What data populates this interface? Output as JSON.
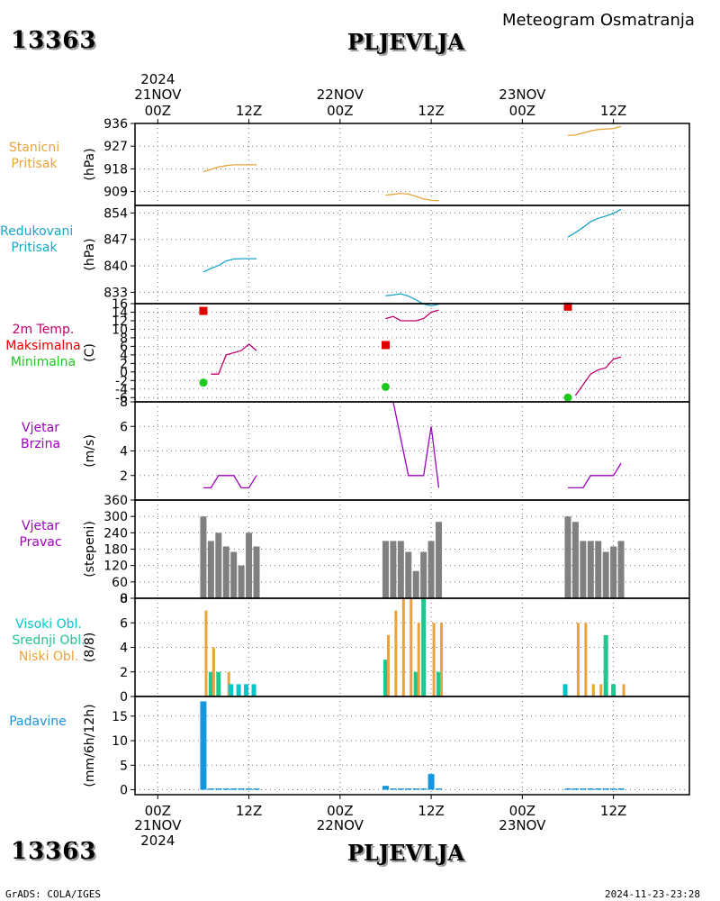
{
  "header": {
    "station_id": "13363",
    "station_name": "PLJEVLJA",
    "title": "Meteogram Osmatranja"
  },
  "footer": {
    "source": "GrADS: COLA/IGES",
    "timestamp": "2024-11-23-23:28"
  },
  "time_axis": {
    "year": "2024",
    "major_ticks": [
      {
        "hour": 0,
        "label": "00Z",
        "date": "21NOV"
      },
      {
        "hour": 12,
        "label": "12Z",
        "date": ""
      },
      {
        "hour": 24,
        "label": "00Z",
        "date": "22NOV"
      },
      {
        "hour": 36,
        "label": "12Z",
        "date": ""
      },
      {
        "hour": 48,
        "label": "00Z",
        "date": "23NOV"
      },
      {
        "hour": 60,
        "label": "12Z",
        "date": ""
      }
    ],
    "range_hours": [
      -3,
      70
    ]
  },
  "colors": {
    "pressure_station": "#e8a33a",
    "pressure_reduced": "#1aa5c8",
    "temperature": "#c0006a",
    "tmax": "#e00000",
    "tmin": "#1ec81e",
    "wind_speed": "#a000c0",
    "wind_dir": "#808080",
    "cloud_high": "#00c8c8",
    "cloud_mid": "#1ec88c",
    "cloud_low": "#e8a33a",
    "precip": "#1696dc"
  },
  "labels": {
    "p_station": [
      "Stanicni",
      "Pritisak"
    ],
    "p_reduced": [
      "Redukovani",
      "Pritisak"
    ],
    "temp": [
      "2m Temp.",
      "Maksimalna",
      "Minimalna"
    ],
    "wind": [
      "Vjetar",
      "Brzina"
    ],
    "dir": [
      "Vjetar",
      "Pravac"
    ],
    "clouds": [
      "Visoki Obl.",
      "Srednji Obl.",
      "Niski Obl."
    ],
    "precip": [
      "Padavine"
    ]
  },
  "chart_data": [
    {
      "type": "line",
      "title": "Stanicni Pritisak",
      "ylabel": "(hPa)",
      "ylim": [
        903.5,
        936
      ],
      "yticks": [
        909,
        918,
        927,
        936
      ],
      "series": [
        {
          "segment": 1,
          "x": [
            6,
            7,
            8,
            9,
            10,
            11,
            12,
            13
          ],
          "y": [
            916.8,
            917.8,
            918.8,
            919.3,
            919.6,
            919.6,
            919.6,
            919.6
          ]
        },
        {
          "segment": 2,
          "x": [
            30,
            31,
            32,
            33,
            34,
            35,
            36,
            37
          ],
          "y": [
            907.6,
            907.9,
            908.3,
            908.0,
            907.1,
            906.1,
            905.5,
            905.4
          ]
        },
        {
          "segment": 3,
          "x": [
            54,
            55,
            56,
            57,
            58,
            59,
            60,
            61
          ],
          "y": [
            931.2,
            931.4,
            932.2,
            933.0,
            933.6,
            933.8,
            934.0,
            934.8
          ]
        }
      ]
    },
    {
      "type": "line",
      "title": "Redukovani Pritisak",
      "ylabel": "(hPa)",
      "ylim": [
        830,
        856
      ],
      "yticks": [
        833,
        840,
        847,
        854
      ],
      "series": [
        {
          "segment": 1,
          "x": [
            6,
            7,
            8,
            9,
            10,
            11,
            12,
            13
          ],
          "y": [
            838.4,
            839.3,
            840.1,
            841.3,
            841.8,
            841.9,
            841.9,
            841.9
          ]
        },
        {
          "segment": 2,
          "x": [
            30,
            31,
            32,
            33,
            34,
            35,
            36,
            37
          ],
          "y": [
            832.1,
            832.3,
            832.6,
            832.0,
            831.0,
            829.9,
            829.4,
            829.8
          ]
        },
        {
          "segment": 3,
          "x": [
            54,
            55,
            56,
            57,
            58,
            59,
            60,
            61
          ],
          "y": [
            847.6,
            848.8,
            850.2,
            851.7,
            852.6,
            853.2,
            853.9,
            855.0
          ]
        }
      ]
    },
    {
      "type": "line",
      "title": "2m Temp. Maksimalna Minimalna",
      "ylabel": "(C)",
      "ylim": [
        -7,
        16
      ],
      "yticks": [
        -6,
        -4,
        -2,
        0,
        2,
        4,
        6,
        8,
        10,
        12,
        14,
        16
      ],
      "series": [
        {
          "name": "2m Temp.",
          "segment": 1,
          "x": [
            7,
            8,
            9,
            10,
            11,
            12,
            13
          ],
          "y": [
            -0.5,
            -0.5,
            4.0,
            4.5,
            5.0,
            6.5,
            5.0
          ]
        },
        {
          "name": "2m Temp.",
          "segment": 2,
          "x": [
            30,
            31,
            32,
            33,
            34,
            35,
            36,
            37
          ],
          "y": [
            12.5,
            13.0,
            12.0,
            12.0,
            12.0,
            12.5,
            14.0,
            14.5
          ]
        },
        {
          "name": "2m Temp.",
          "segment": 3,
          "x": [
            55,
            56,
            57,
            58,
            59,
            60,
            61
          ],
          "y": [
            -5.5,
            -3.0,
            -0.5,
            0.5,
            1.0,
            3.0,
            3.5
          ]
        }
      ],
      "maxima": {
        "name": "Maksimalna",
        "x": [
          6,
          30,
          54
        ],
        "y": [
          14.3,
          6.3,
          15.3
        ]
      },
      "minima": {
        "name": "Minimalna",
        "x": [
          6,
          30,
          54
        ],
        "y": [
          -2.5,
          -3.5,
          -6.0
        ]
      }
    },
    {
      "type": "line",
      "title": "Vjetar Brzina",
      "ylabel": "(m/s)",
      "ylim": [
        0,
        8
      ],
      "yticks": [
        2,
        4,
        6,
        8
      ],
      "series": [
        {
          "segment": 1,
          "x": [
            6,
            7,
            8,
            9,
            10,
            11,
            12,
            13
          ],
          "y": [
            1,
            1,
            2,
            2,
            2,
            1,
            1,
            2
          ]
        },
        {
          "segment": 2,
          "x": [
            30,
            31,
            32,
            33,
            34,
            35,
            36,
            37
          ],
          "y": [
            8,
            8,
            5,
            2,
            2,
            2,
            6,
            1
          ]
        },
        {
          "segment": 3,
          "x": [
            54,
            55,
            56,
            57,
            58,
            59,
            60,
            61
          ],
          "y": [
            1,
            1,
            1,
            2,
            2,
            2,
            2,
            3
          ]
        }
      ]
    },
    {
      "type": "bar",
      "title": "Vjetar Pravac",
      "ylabel": "(stepeni)",
      "ylim": [
        0,
        360
      ],
      "yticks": [
        0,
        60,
        120,
        180,
        240,
        300,
        360
      ],
      "x": [
        6,
        7,
        8,
        9,
        10,
        11,
        12,
        13,
        30,
        31,
        32,
        33,
        34,
        35,
        36,
        37,
        54,
        55,
        56,
        57,
        58,
        59,
        60,
        61
      ],
      "values": [
        300,
        210,
        240,
        190,
        170,
        120,
        240,
        190,
        210,
        210,
        210,
        170,
        100,
        170,
        210,
        280,
        300,
        280,
        210,
        210,
        210,
        170,
        190,
        210
      ]
    },
    {
      "type": "bar",
      "title": "Visoki Obl. Srednji Obl. Niski Obl.",
      "ylabel": "(8/8)",
      "ylim": [
        0,
        8
      ],
      "yticks": [
        0,
        2,
        4,
        6,
        8
      ],
      "x": [
        6,
        7,
        8,
        9,
        10,
        11,
        12,
        13,
        30,
        31,
        32,
        33,
        34,
        35,
        36,
        37,
        54,
        55,
        56,
        57,
        58,
        59,
        60,
        61
      ],
      "series": [
        {
          "name": "Visoki Obl.",
          "values": [
            0,
            0,
            0,
            0,
            1,
            1,
            1,
            1,
            0,
            0,
            0,
            0,
            0,
            0,
            0,
            0,
            1,
            0,
            0,
            0,
            0,
            0,
            0,
            0
          ]
        },
        {
          "name": "Srednji Obl.",
          "values": [
            0,
            2,
            2,
            0,
            0,
            0,
            0,
            0,
            3,
            0,
            0,
            0,
            2,
            8,
            0,
            2,
            0,
            0,
            0,
            0,
            0,
            5,
            1,
            0
          ]
        },
        {
          "name": "Niski Obl.",
          "values": [
            7,
            4,
            0,
            2,
            0,
            0,
            0,
            0,
            5,
            7,
            8,
            8,
            6,
            0,
            6,
            6,
            0,
            6,
            6,
            1,
            1,
            0,
            0,
            1
          ]
        }
      ]
    },
    {
      "type": "bar",
      "title": "Padavine",
      "ylabel": "(mm/6h/12h)",
      "ylim": [
        -1,
        19
      ],
      "yticks": [
        0,
        5,
        10,
        15
      ],
      "x": [
        6,
        7,
        8,
        9,
        10,
        11,
        12,
        13,
        30,
        31,
        32,
        33,
        34,
        35,
        36,
        37,
        54,
        55,
        56,
        57,
        58,
        59,
        60,
        61
      ],
      "values": [
        18,
        0.2,
        0.2,
        0.2,
        0.2,
        0.2,
        0.2,
        0.2,
        0.8,
        0.2,
        0.2,
        0.2,
        0.2,
        0.2,
        3.2,
        0.2,
        0.2,
        0.2,
        0.2,
        0.2,
        0.2,
        0.2,
        0.2,
        0.2
      ]
    }
  ]
}
